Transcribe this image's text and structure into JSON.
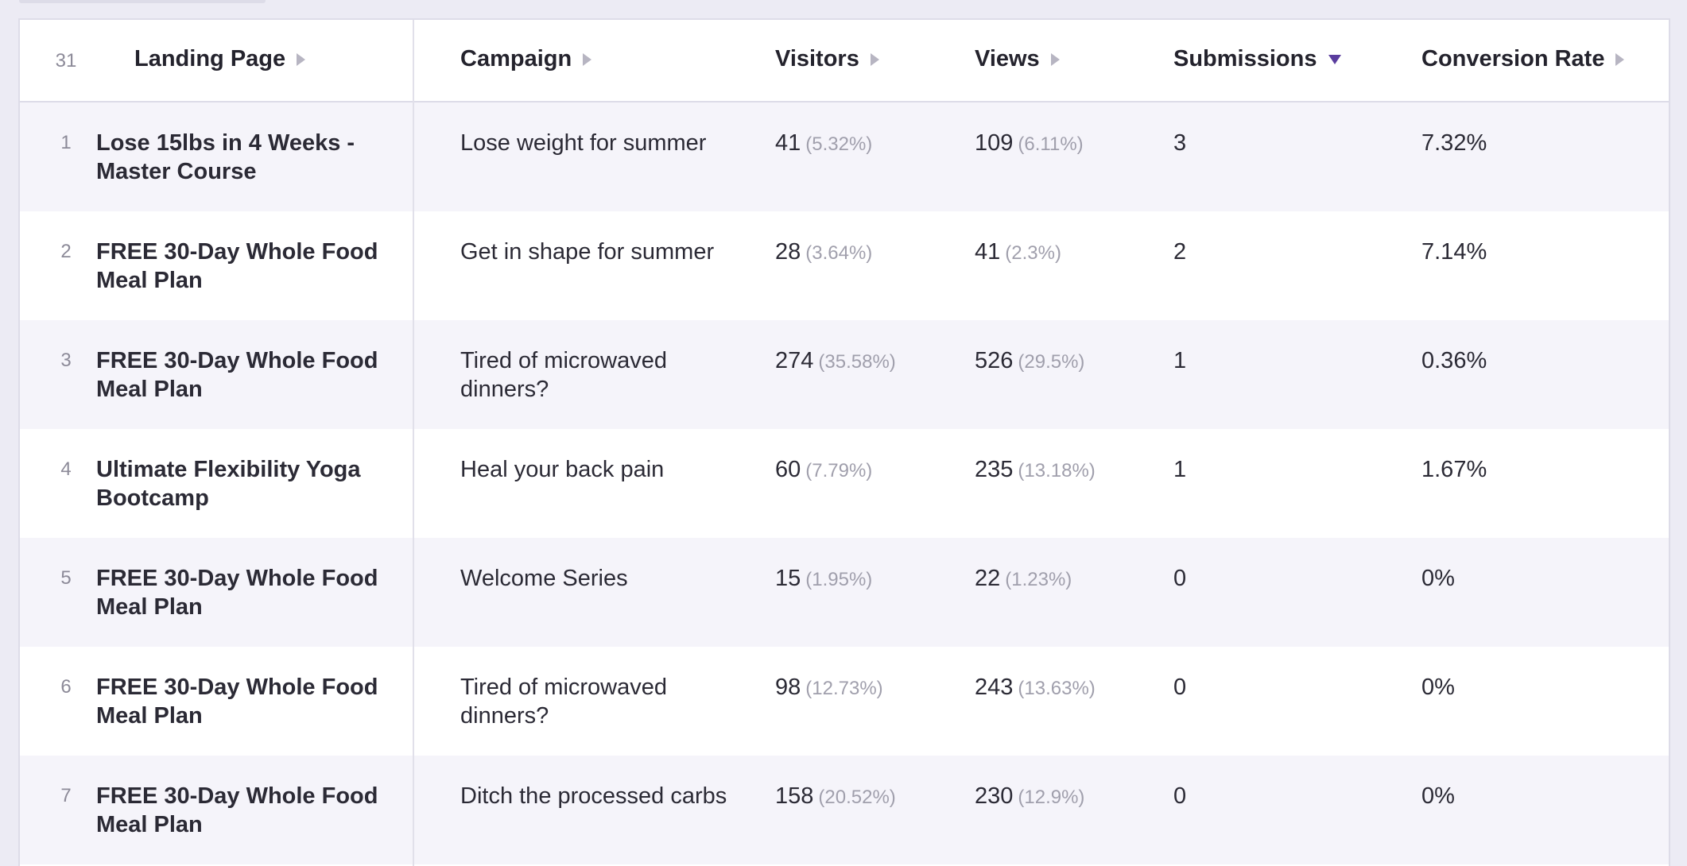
{
  "table": {
    "row_count": "31",
    "columns": {
      "landing_page": "Landing Page",
      "campaign": "Campaign",
      "visitors": "Visitors",
      "views": "Views",
      "submissions": "Submissions",
      "conversion_rate": "Conversion Rate"
    },
    "sorted_column": "Submissions",
    "sort_direction": "descending",
    "rows": [
      {
        "index": "1",
        "landing_page": "Lose 15lbs in 4 Weeks - Master Course",
        "campaign": "Lose weight for summer",
        "visitors": "41",
        "visitors_pct": "(5.32%)",
        "views": "109",
        "views_pct": "(6.11%)",
        "submissions": "3",
        "conversion_rate": "7.32%"
      },
      {
        "index": "2",
        "landing_page": "FREE 30-Day Whole Food Meal Plan",
        "campaign": "Get in shape for summer",
        "visitors": "28",
        "visitors_pct": "(3.64%)",
        "views": "41",
        "views_pct": "(2.3%)",
        "submissions": "2",
        "conversion_rate": "7.14%"
      },
      {
        "index": "3",
        "landing_page": "FREE 30-Day Whole Food Meal Plan",
        "campaign": "Tired of microwaved dinners?",
        "visitors": "274",
        "visitors_pct": "(35.58%)",
        "views": "526",
        "views_pct": "(29.5%)",
        "submissions": "1",
        "conversion_rate": "0.36%"
      },
      {
        "index": "4",
        "landing_page": "Ultimate Flexibility Yoga Bootcamp",
        "campaign": "Heal your back pain",
        "visitors": "60",
        "visitors_pct": "(7.79%)",
        "views": "235",
        "views_pct": "(13.18%)",
        "submissions": "1",
        "conversion_rate": "1.67%"
      },
      {
        "index": "5",
        "landing_page": "FREE 30-Day Whole Food Meal Plan",
        "campaign": "Welcome Series",
        "visitors": "15",
        "visitors_pct": "(1.95%)",
        "views": "22",
        "views_pct": "(1.23%)",
        "submissions": "0",
        "conversion_rate": "0%"
      },
      {
        "index": "6",
        "landing_page": "FREE 30-Day Whole Food Meal Plan",
        "campaign": "Tired of microwaved dinners?",
        "visitors": "98",
        "visitors_pct": "(12.73%)",
        "views": "243",
        "views_pct": "(13.63%)",
        "submissions": "0",
        "conversion_rate": "0%"
      },
      {
        "index": "7",
        "landing_page": "FREE 30-Day Whole Food Meal Plan",
        "campaign": "Ditch the processed carbs",
        "visitors": "158",
        "visitors_pct": "(20.52%)",
        "views": "230",
        "views_pct": "(12.9%)",
        "submissions": "0",
        "conversion_rate": "0%"
      }
    ]
  },
  "colors": {
    "page_background": "#ecebf4",
    "row_stripe": "#f5f4fa",
    "sort_accent": "#5a3d9e",
    "muted_text": "#a09fac"
  }
}
